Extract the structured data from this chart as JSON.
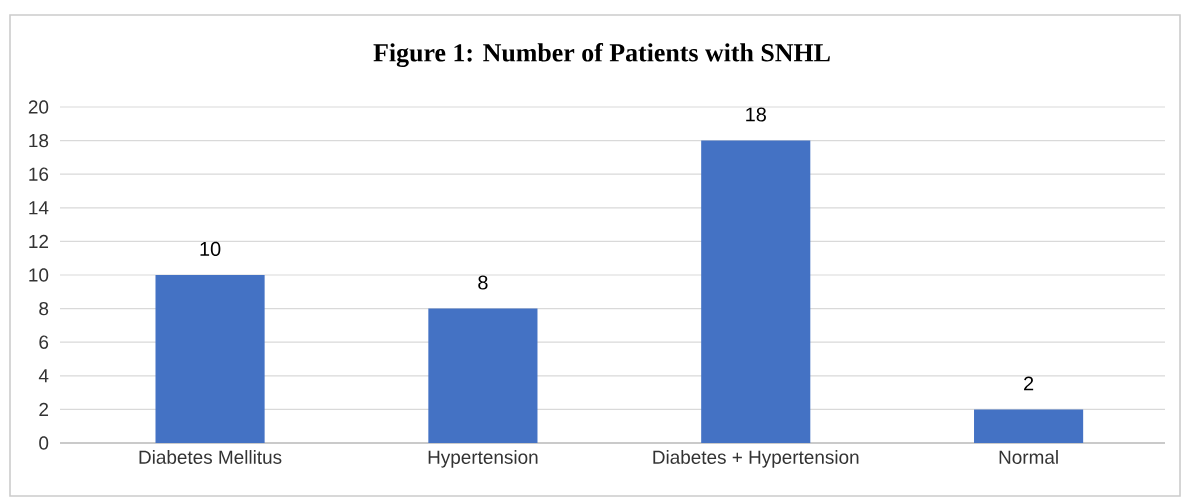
{
  "chart_data": {
    "type": "bar",
    "title": "Figure 1: Number of Patients with SNHL",
    "categories": [
      "Diabetes Mellitus",
      "Hypertension",
      "Diabetes + Hypertension",
      "Normal"
    ],
    "values": [
      10,
      8,
      18,
      2
    ],
    "color": "#4472c4",
    "ylim": [
      0,
      20
    ],
    "yticks": [
      0,
      2,
      4,
      6,
      8,
      10,
      12,
      14,
      16,
      18,
      20
    ],
    "grid": "y",
    "data_labels": true
  }
}
